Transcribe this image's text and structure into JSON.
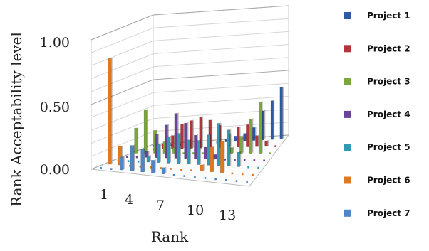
{
  "chart_data": {
    "type": "bar",
    "variant": "3d-column",
    "ylabel": "Rank Acceptability level",
    "xlabel": "Rank",
    "ylim": [
      0,
      1
    ],
    "yticks": [
      "0.00",
      "0.50",
      "1.00"
    ],
    "x_tick_labels": [
      "1",
      "4",
      "7",
      "10",
      "13"
    ],
    "categories": [
      1,
      2,
      3,
      4,
      5,
      6,
      7,
      8,
      9,
      10,
      11,
      12,
      13,
      14,
      15
    ],
    "grid": true,
    "legend_position": "right",
    "series": [
      {
        "name": "Project 1",
        "color": "#2e5aa6",
        "values": [
          0.0,
          0.0,
          0.0,
          0.0,
          0.0,
          0.0,
          0.0,
          0.0,
          0.03,
          0.05,
          0.07,
          0.12,
          0.27,
          0.36,
          0.48
        ]
      },
      {
        "name": "Project 2",
        "color": "#b5343a",
        "values": [
          0.0,
          0.0,
          0.05,
          0.12,
          0.22,
          0.25,
          0.28,
          0.25,
          0.2,
          0.12,
          0.18,
          0.2,
          0.1,
          0.05,
          0.0
        ]
      },
      {
        "name": "Project 3",
        "color": "#7aa83a",
        "values": [
          0.22,
          0.38,
          0.2,
          0.1,
          0.05,
          0.0,
          0.0,
          0.0,
          0.0,
          0.02,
          0.05,
          0.15,
          0.3,
          0.45,
          0.0
        ]
      },
      {
        "name": "Project 4",
        "color": "#6a449a",
        "values": [
          0.0,
          0.0,
          0.05,
          0.2,
          0.28,
          0.38,
          0.3,
          0.2,
          0.1,
          0.04,
          0.0,
          0.0,
          0.0,
          0.0,
          0.0
        ]
      },
      {
        "name": "Project 5",
        "color": "#2d9bb5",
        "values": [
          0.0,
          0.0,
          0.0,
          0.05,
          0.15,
          0.22,
          0.25,
          0.2,
          0.2,
          0.25,
          0.35,
          0.3,
          0.12,
          0.0,
          0.0
        ]
      },
      {
        "name": "Project 6",
        "color": "#e07a22",
        "values": [
          0.85,
          0.15,
          0.0,
          0.0,
          0.0,
          0.0,
          0.0,
          0.0,
          0.0,
          0.05,
          0.2,
          0.25,
          0.0,
          0.0,
          0.0
        ]
      },
      {
        "name": "Project 7",
        "color": "#4f86c6",
        "values": [
          0.0,
          0.0,
          0.1,
          0.2,
          0.18,
          0.1,
          0.05,
          0.0,
          0.0,
          0.0,
          0.0,
          0.0,
          0.0,
          0.0,
          0.0
        ]
      }
    ]
  }
}
